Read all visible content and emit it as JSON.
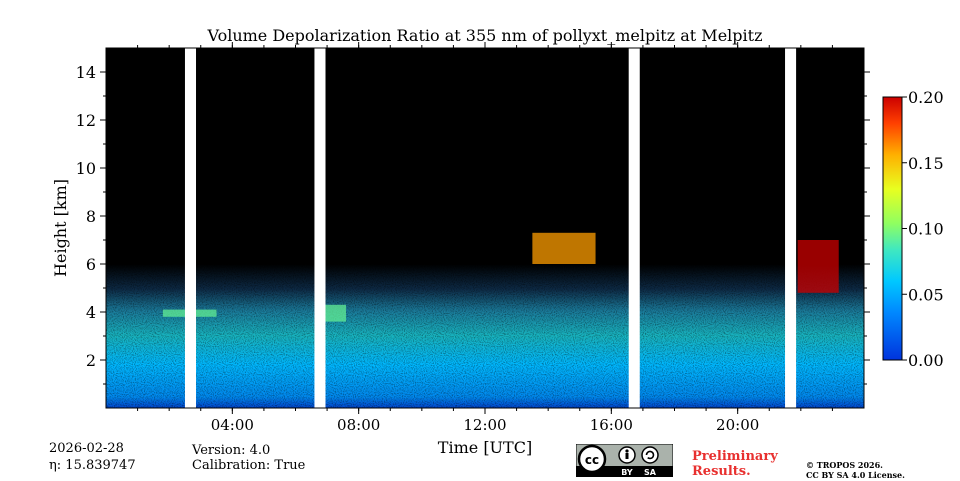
{
  "chart_data": {
    "type": "heatmap",
    "title": "Volume Depolarization Ratio at 355 nm of pollyxt_melpitz at Melpitz",
    "xlabel": "Time [UTC]",
    "ylabel": "Height [km]",
    "xlim_hours": [
      0,
      24
    ],
    "ylim_km": [
      0,
      15
    ],
    "x_ticks": [
      {
        "hour": 4,
        "label": "04:00"
      },
      {
        "hour": 8,
        "label": "08:00"
      },
      {
        "hour": 12,
        "label": "12:00"
      },
      {
        "hour": 16,
        "label": "16:00"
      },
      {
        "hour": 20,
        "label": "20:00"
      }
    ],
    "y_ticks": [
      {
        "km": 2,
        "label": "2"
      },
      {
        "km": 4,
        "label": "4"
      },
      {
        "km": 6,
        "label": "6"
      },
      {
        "km": 8,
        "label": "8"
      },
      {
        "km": 10,
        "label": "10"
      },
      {
        "km": 12,
        "label": "12"
      },
      {
        "km": 14,
        "label": "14"
      }
    ],
    "colorbar": {
      "min": 0.0,
      "max": 0.2,
      "ticks": [
        {
          "value": 0.0,
          "label": "0.00"
        },
        {
          "value": 0.05,
          "label": "0.05"
        },
        {
          "value": 0.1,
          "label": "0.10"
        },
        {
          "value": 0.15,
          "label": "0.15"
        },
        {
          "value": 0.2,
          "label": "0.20"
        }
      ],
      "colormap": "jet"
    },
    "data_gaps_hours": [
      [
        2.5,
        2.85
      ],
      [
        6.6,
        6.95
      ],
      [
        16.55,
        16.9
      ],
      [
        21.5,
        21.85
      ]
    ],
    "cloud_features": [
      {
        "start_hour": 6.95,
        "end_hour": 7.6,
        "base_km": 3.6,
        "top_km": 4.3,
        "value": 0.09
      },
      {
        "start_hour": 1.8,
        "end_hour": 3.5,
        "base_km": 3.8,
        "top_km": 4.1,
        "value": 0.09
      },
      {
        "start_hour": 13.5,
        "end_hour": 15.5,
        "base_km": 6.0,
        "top_km": 7.3,
        "value": 0.16
      },
      {
        "start_hour": 21.9,
        "end_hour": 23.2,
        "base_km": 4.8,
        "top_km": 7.0,
        "value": 0.2
      }
    ]
  },
  "footer": {
    "date": "2026-02-28",
    "eta": "η: 15.839747",
    "version": "Version: 4.0",
    "calibration": "Calibration: True",
    "preliminary_line1": "Preliminary",
    "preliminary_line2": "Results.",
    "copyright_line1": "© TROPOS 2026.",
    "copyright_line2": "CC BY SA 4.0 License.",
    "license_badge": {
      "cc": "cc",
      "by": "BY",
      "sa": "SA"
    }
  }
}
